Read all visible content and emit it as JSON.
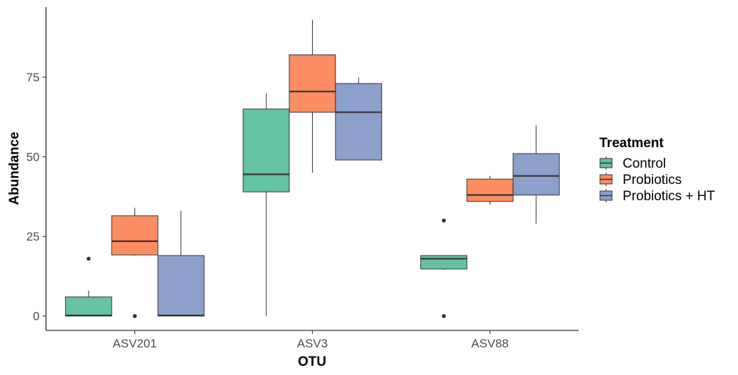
{
  "chart_data": {
    "type": "boxplot",
    "xlabel": "OTU",
    "ylabel": "Abundance",
    "categories": [
      "ASV201",
      "ASV3",
      "ASV88"
    ],
    "y_ticks": [
      0,
      25,
      50,
      75
    ],
    "ylim": [
      -4.5,
      97
    ],
    "grid": false,
    "legend": {
      "title": "Treatment",
      "position": "right",
      "items": [
        "Control",
        "Probiotics",
        "Probiotics + HT"
      ]
    },
    "series": [
      {
        "name": "Control",
        "color": "#66C2A5",
        "boxes": [
          {
            "category": "ASV201",
            "min": 0,
            "q1": 0,
            "median": 0.2,
            "q3": 6,
            "max": 8,
            "outliers": [
              18
            ]
          },
          {
            "category": "ASV3",
            "min": 0,
            "q1": 39,
            "median": 44.5,
            "q3": 65,
            "max": 70,
            "outliers": []
          },
          {
            "category": "ASV88",
            "min": 14.5,
            "q1": 14.8,
            "median": 18,
            "q3": 19,
            "max": 19,
            "outliers": [
              30,
              0
            ]
          }
        ]
      },
      {
        "name": "Probiotics",
        "color": "#FC8D62",
        "boxes": [
          {
            "category": "ASV201",
            "min": 19,
            "q1": 19.2,
            "median": 23.5,
            "q3": 31.5,
            "max": 34,
            "outliers": [
              0
            ]
          },
          {
            "category": "ASV3",
            "min": 45,
            "q1": 64,
            "median": 70.5,
            "q3": 82,
            "max": 93,
            "outliers": []
          },
          {
            "category": "ASV88",
            "min": 35,
            "q1": 36,
            "median": 38,
            "q3": 43,
            "max": 44,
            "outliers": []
          }
        ]
      },
      {
        "name": "Probiotics + HT",
        "color": "#8DA0CB",
        "boxes": [
          {
            "category": "ASV201",
            "min": 0,
            "q1": 0,
            "median": 0.2,
            "q3": 19,
            "max": 33,
            "outliers": []
          },
          {
            "category": "ASV3",
            "min": 49,
            "q1": 49,
            "median": 64,
            "q3": 73,
            "max": 75,
            "outliers": []
          },
          {
            "category": "ASV88",
            "min": 29,
            "q1": 38,
            "median": 44,
            "q3": 51,
            "max": 60,
            "outliers": []
          }
        ]
      }
    ]
  }
}
